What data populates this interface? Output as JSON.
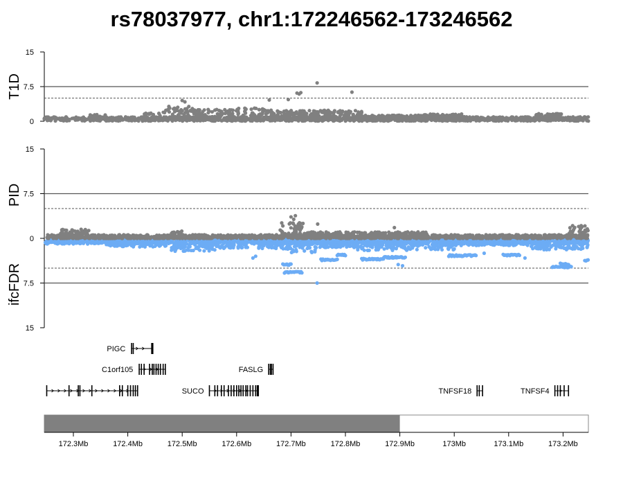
{
  "title": "rs78037977, chr1:172246562-173246562",
  "colors": {
    "t1d": "#808080",
    "pid": "#808080",
    "ifcfdr": "#6cacf5",
    "band": "#808080",
    "axis": "#000000",
    "line": "#555555"
  },
  "chart_data": [
    {
      "type": "scatter",
      "panel": "T1D",
      "ylabel": "T1D",
      "ylim": [
        0,
        15
      ],
      "yticks": [
        "15",
        "7.5",
        "0"
      ],
      "ytick_values": [
        15,
        7.5,
        0
      ],
      "hlines": {
        "solid": 7.5,
        "dashed": 5
      },
      "xlim": [
        172.246562,
        173.246562
      ],
      "background": {
        "start": 172.246562,
        "end": 173.246562,
        "level": 0.5,
        "jitter": 0.45
      },
      "clusters": [
        {
          "start": 172.33,
          "end": 172.36,
          "level": 1.2
        },
        {
          "start": 172.43,
          "end": 172.46,
          "level": 1.5
        },
        {
          "start": 172.465,
          "end": 172.52,
          "level": 2.7
        },
        {
          "start": 172.52,
          "end": 172.6,
          "level": 2.2
        },
        {
          "start": 172.6,
          "end": 172.66,
          "level": 2.4
        },
        {
          "start": 172.66,
          "end": 172.7,
          "level": 2.0
        },
        {
          "start": 172.7,
          "end": 172.83,
          "level": 2.0
        },
        {
          "start": 172.83,
          "end": 172.93,
          "level": 1.1
        },
        {
          "start": 172.93,
          "end": 173.02,
          "level": 1.3
        },
        {
          "start": 173.15,
          "end": 173.2,
          "level": 1.4
        }
      ],
      "points": [
        {
          "x": 172.711,
          "y": 6.1
        },
        {
          "x": 172.715,
          "y": 5.9
        },
        {
          "x": 172.718,
          "y": 6.2
        },
        {
          "x": 172.748,
          "y": 8.3
        },
        {
          "x": 172.812,
          "y": 6.3
        },
        {
          "x": 172.5,
          "y": 4.5
        },
        {
          "x": 172.505,
          "y": 4.2
        },
        {
          "x": 172.66,
          "y": 4.6
        },
        {
          "x": 172.695,
          "y": 4.7
        }
      ]
    },
    {
      "type": "scatter",
      "panel": "PID / ifcFDR",
      "ylabel_top": "PID",
      "ylabel_bottom": "ifcFDR",
      "ylim": [
        -15,
        15
      ],
      "yticks": [
        "15",
        "7.5",
        "0",
        "7.5",
        "15"
      ],
      "ytick_values": [
        15,
        7.5,
        0,
        -7.5,
        -15
      ],
      "hlines": {
        "solid": [
          7.5,
          -7.5
        ],
        "dashed": [
          5,
          -5
        ]
      },
      "series": [
        {
          "name": "PID",
          "background": {
            "start": 172.246562,
            "end": 173.246562,
            "level": 0.25,
            "jitter": 0.35
          },
          "clusters": [
            {
              "start": 172.275,
              "end": 172.33,
              "level": 1.3
            },
            {
              "start": 172.48,
              "end": 172.5,
              "level": 1.1
            },
            {
              "start": 172.68,
              "end": 172.72,
              "level": 2.2
            },
            {
              "start": 172.72,
              "end": 172.95,
              "level": 0.9
            },
            {
              "start": 173.21,
              "end": 173.246,
              "level": 1.8
            }
          ],
          "points": [
            {
              "x": 172.7,
              "y": 3.6
            },
            {
              "x": 172.705,
              "y": 3.2
            },
            {
              "x": 172.708,
              "y": 3.8
            },
            {
              "x": 172.722,
              "y": 2.5
            },
            {
              "x": 172.749,
              "y": 2.4
            },
            {
              "x": 172.89,
              "y": 1.8
            }
          ]
        },
        {
          "name": "ifcFDR",
          "background": {
            "start": 172.246562,
            "end": 173.246562,
            "level": -0.5,
            "jitter": 0.45
          },
          "clusters": [
            {
              "start": 172.3,
              "end": 172.36,
              "level": -0.7
            },
            {
              "start": 172.36,
              "end": 172.47,
              "level": -1.2
            },
            {
              "start": 172.48,
              "end": 172.56,
              "level": -1.8
            },
            {
              "start": 172.56,
              "end": 172.62,
              "level": -1.4
            },
            {
              "start": 172.64,
              "end": 172.7,
              "level": -1.5
            },
            {
              "start": 172.7,
              "end": 172.745,
              "level": -2.0
            },
            {
              "start": 172.745,
              "end": 172.82,
              "level": -1.3
            },
            {
              "start": 172.82,
              "end": 172.92,
              "level": -1.7
            },
            {
              "start": 172.92,
              "end": 173.0,
              "level": -1.6
            },
            {
              "start": 173.0,
              "end": 173.14,
              "level": -1.0
            },
            {
              "start": 173.14,
              "end": 173.246,
              "level": -1.6
            }
          ],
          "segments": [
            {
              "start": 172.688,
              "end": 172.72,
              "y": -5.7
            },
            {
              "start": 172.685,
              "end": 172.7,
              "y": -4.4
            },
            {
              "start": 172.755,
              "end": 172.785,
              "y": -3.6
            },
            {
              "start": 172.785,
              "end": 172.8,
              "y": -2.8
            },
            {
              "start": 172.83,
              "end": 172.87,
              "y": -3.5
            },
            {
              "start": 172.87,
              "end": 172.91,
              "y": -3.2
            },
            {
              "start": 172.99,
              "end": 173.04,
              "y": -2.9
            },
            {
              "start": 173.09,
              "end": 173.12,
              "y": -2.8
            },
            {
              "start": 173.18,
              "end": 173.215,
              "y": -4.8
            },
            {
              "start": 173.195,
              "end": 173.21,
              "y": -4.3
            },
            {
              "start": 173.24,
              "end": 173.246,
              "y": -3.7
            }
          ],
          "points": [
            {
              "x": 172.748,
              "y": -7.5
            },
            {
              "x": 172.63,
              "y": -3.3
            },
            {
              "x": 172.635,
              "y": -3.0
            },
            {
              "x": 172.897,
              "y": -4.4
            },
            {
              "x": 172.905,
              "y": -4.6
            },
            {
              "x": 173.13,
              "y": -3.3
            },
            {
              "x": 173.055,
              "y": -2.5
            },
            {
              "x": 172.57,
              "y": -1.6
            }
          ]
        }
      ]
    }
  ],
  "genes": [
    {
      "name": "PIGC",
      "start": 172.406,
      "end": 172.446,
      "row": 0,
      "label_side": "left",
      "exons": [
        172.407,
        172.41,
        172.444,
        172.446
      ]
    },
    {
      "name": "C1orf105",
      "start": 172.42,
      "end": 172.47,
      "row": 1,
      "label_side": "left",
      "exons": [
        172.421,
        172.425,
        172.43,
        172.44,
        172.445,
        172.448,
        172.452,
        172.456,
        172.46,
        172.465,
        172.469
      ]
    },
    {
      "name": "FASLG",
      "start": 172.659,
      "end": 172.667,
      "row": 1,
      "label_side": "left",
      "exons": [
        172.659,
        172.662,
        172.664,
        172.667
      ]
    },
    {
      "name": "",
      "start": 172.251,
      "end": 172.418,
      "row": 2,
      "label_side": "none",
      "exons": [
        172.251,
        172.292,
        172.309,
        172.312,
        172.334,
        172.385,
        172.39,
        172.4,
        172.405,
        172.41,
        172.414,
        172.418
      ]
    },
    {
      "name": "SUCO",
      "start": 172.55,
      "end": 172.64,
      "row": 2,
      "label_side": "left",
      "exons": [
        172.55,
        172.56,
        172.565,
        172.572,
        172.577,
        172.585,
        172.59,
        172.595,
        172.6,
        172.604,
        172.608,
        172.612,
        172.617,
        172.62,
        172.625,
        172.63,
        172.635,
        172.638,
        172.64
      ]
    },
    {
      "name": "TNFSF18",
      "start": 173.042,
      "end": 173.052,
      "row": 2,
      "label_side": "left",
      "exons": [
        173.042,
        173.046,
        173.052
      ]
    },
    {
      "name": "TNFSF4",
      "start": 173.185,
      "end": 173.21,
      "row": 2,
      "label_side": "left",
      "exons": [
        173.185,
        173.19,
        173.195,
        173.202,
        173.21
      ]
    }
  ],
  "region_band": {
    "start": 172.246562,
    "end": 172.9,
    "xlim": [
      172.246562,
      173.246562
    ]
  },
  "x_axis": {
    "ticks": [
      172.3,
      172.4,
      172.5,
      172.6,
      172.7,
      172.8,
      172.9,
      173.0,
      173.1,
      173.2
    ],
    "labels": [
      "172.3Mb",
      "172.4Mb",
      "172.5Mb",
      "172.6Mb",
      "172.7Mb",
      "172.8Mb",
      "172.9Mb",
      "173Mb",
      "173.1Mb",
      "173.2Mb"
    ]
  }
}
